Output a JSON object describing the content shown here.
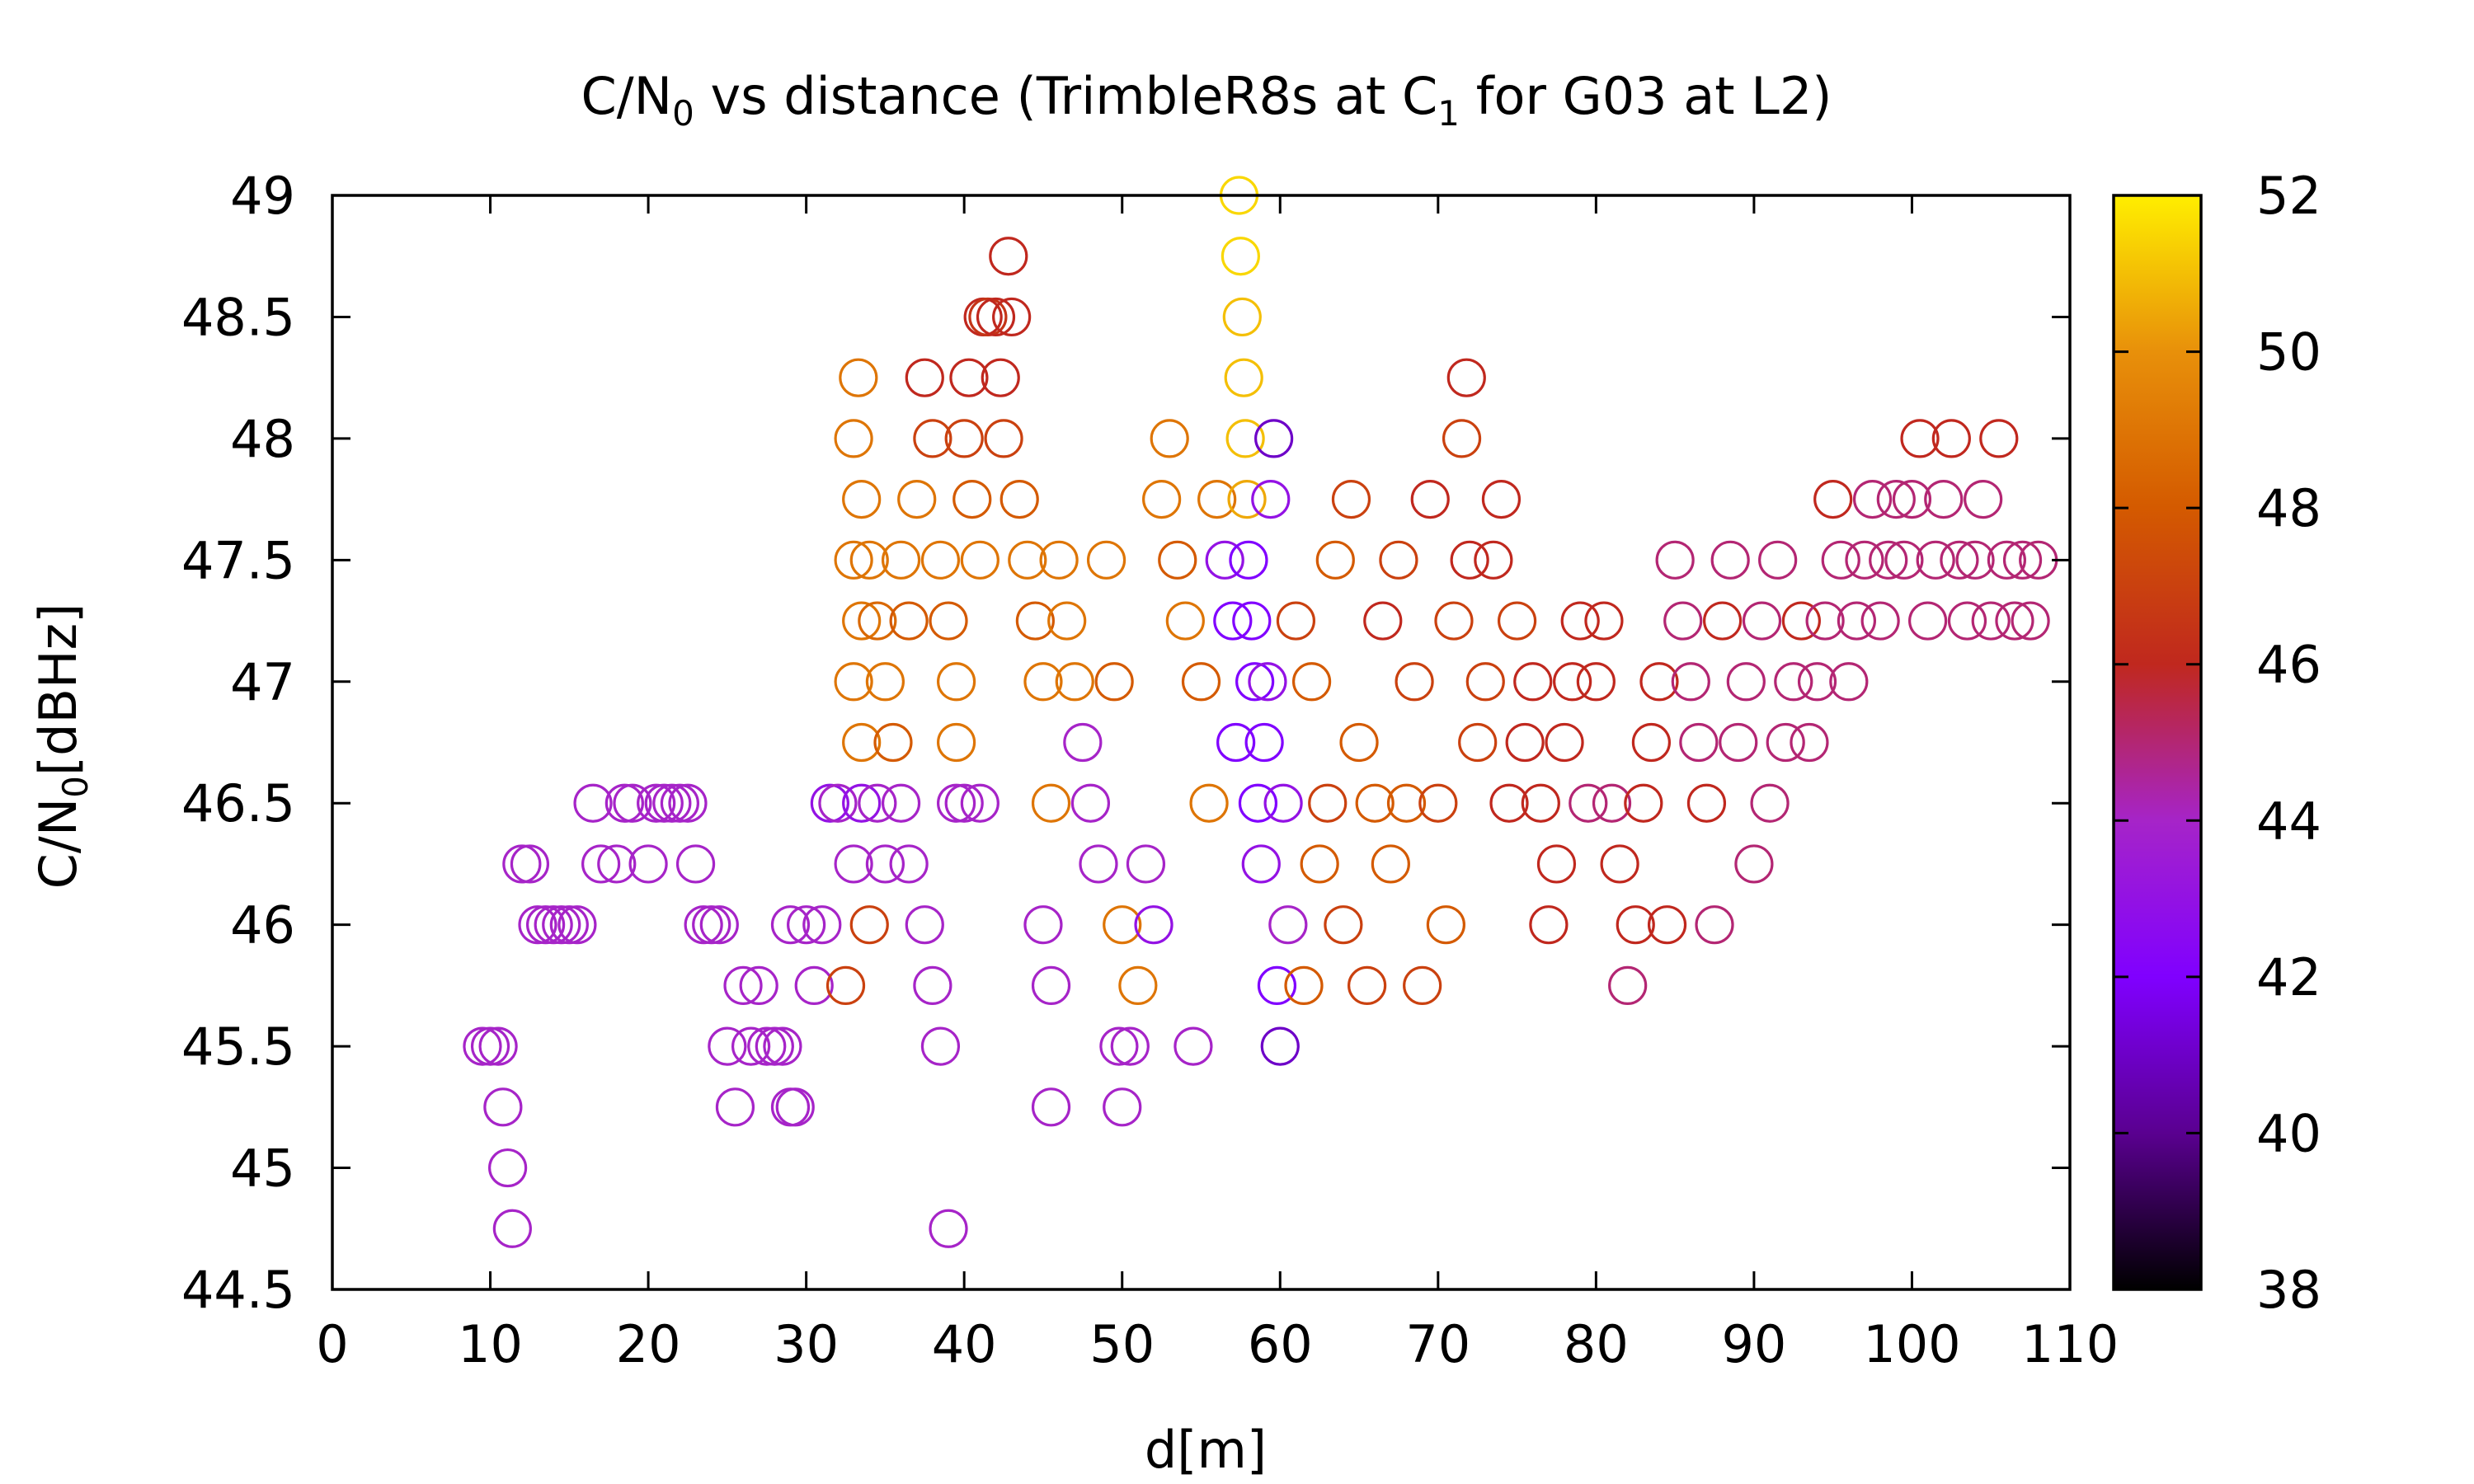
{
  "chart_data": {
    "type": "scatter",
    "title": {
      "prefix": "C/N",
      "sub1": "0",
      "middle": " vs distance (TrimbleR8s at C",
      "sub2": "1",
      "suffix": " for G03 at L2)"
    },
    "xlabel": "d[m]",
    "ylabel": {
      "prefix": "C/N",
      "sub": "0",
      "suffix": "[dBHz]"
    },
    "xlim": [
      0,
      110
    ],
    "ylim": [
      44.5,
      49
    ],
    "xticks": [
      "0",
      "10",
      "20",
      "30",
      "40",
      "50",
      "60",
      "70",
      "80",
      "90",
      "100",
      "110"
    ],
    "yticks": [
      "44.5",
      "45",
      "45.5",
      "46",
      "46.5",
      "47",
      "47.5",
      "48",
      "48.5",
      "49"
    ],
    "colorbar": {
      "range": [
        38,
        52
      ],
      "ticks": [
        "38",
        "40",
        "42",
        "44",
        "46",
        "48",
        "50",
        "52"
      ],
      "palette": [
        "#000000",
        "#5a0090",
        "#8000ff",
        "#a624c8",
        "#c0281e",
        "#d45a00",
        "#e8900a",
        "#ffee00"
      ]
    },
    "marker": "open-circle",
    "grid": false,
    "points": [
      [
        9.5,
        45.5,
        44
      ],
      [
        10.0,
        45.5,
        44
      ],
      [
        10.5,
        45.5,
        44
      ],
      [
        10.8,
        45.25,
        44
      ],
      [
        11.1,
        45.0,
        44
      ],
      [
        11.4,
        44.75,
        44
      ],
      [
        12.0,
        46.25,
        44
      ],
      [
        12.5,
        46.25,
        44
      ],
      [
        13.0,
        46.0,
        44
      ],
      [
        13.5,
        46.0,
        44
      ],
      [
        14.0,
        46.0,
        44
      ],
      [
        14.5,
        46.0,
        44
      ],
      [
        15.0,
        46.0,
        44
      ],
      [
        15.5,
        46.0,
        44
      ],
      [
        16.5,
        46.5,
        44
      ],
      [
        17.0,
        46.25,
        44
      ],
      [
        18.0,
        46.25,
        44
      ],
      [
        18.5,
        46.5,
        44
      ],
      [
        19.0,
        46.5,
        44
      ],
      [
        20.0,
        46.25,
        44
      ],
      [
        20.5,
        46.5,
        44
      ],
      [
        21.0,
        46.5,
        44
      ],
      [
        21.5,
        46.5,
        44
      ],
      [
        22.0,
        46.5,
        44
      ],
      [
        22.5,
        46.5,
        44
      ],
      [
        23.0,
        46.25,
        44
      ],
      [
        23.5,
        46.0,
        44
      ],
      [
        24.0,
        46.0,
        44
      ],
      [
        24.5,
        46.0,
        44
      ],
      [
        25.0,
        45.5,
        44
      ],
      [
        25.5,
        45.25,
        44
      ],
      [
        26.0,
        45.75,
        44
      ],
      [
        26.5,
        45.5,
        44
      ],
      [
        27.0,
        45.75,
        44
      ],
      [
        27.5,
        45.5,
        44
      ],
      [
        28.0,
        45.5,
        44
      ],
      [
        28.5,
        45.5,
        44
      ],
      [
        29.0,
        45.25,
        44
      ],
      [
        29.3,
        45.25,
        44
      ],
      [
        29.0,
        46.0,
        44
      ],
      [
        30.0,
        46.0,
        44
      ],
      [
        30.5,
        45.75,
        44
      ],
      [
        31.0,
        46.0,
        44
      ],
      [
        31.5,
        46.5,
        43
      ],
      [
        32.0,
        46.5,
        44
      ],
      [
        32.5,
        45.75,
        47
      ],
      [
        33.0,
        46.25,
        44
      ],
      [
        33.5,
        46.5,
        43
      ],
      [
        34.0,
        46.0,
        47
      ],
      [
        34.5,
        46.5,
        44
      ],
      [
        35.0,
        46.25,
        44
      ],
      [
        36.0,
        46.5,
        44
      ],
      [
        36.5,
        46.25,
        44
      ],
      [
        37.5,
        46.0,
        44
      ],
      [
        38.0,
        45.75,
        44
      ],
      [
        38.5,
        45.5,
        44
      ],
      [
        39.0,
        44.75,
        44
      ],
      [
        39.5,
        46.5,
        44
      ],
      [
        40.0,
        46.5,
        44
      ],
      [
        41.0,
        46.5,
        44
      ],
      [
        33.0,
        48.0,
        49
      ],
      [
        33.3,
        48.25,
        49
      ],
      [
        33.5,
        47.75,
        49
      ],
      [
        33.0,
        47.5,
        49
      ],
      [
        33.5,
        47.25,
        49
      ],
      [
        33.0,
        47.0,
        49
      ],
      [
        33.5,
        46.75,
        49
      ],
      [
        34.0,
        47.5,
        49
      ],
      [
        34.5,
        47.25,
        48.5
      ],
      [
        35.0,
        47.0,
        49
      ],
      [
        35.5,
        46.75,
        48
      ],
      [
        36.0,
        47.5,
        49
      ],
      [
        36.5,
        47.25,
        48
      ],
      [
        37.0,
        47.75,
        49
      ],
      [
        37.5,
        48.25,
        46
      ],
      [
        38.0,
        48.0,
        47
      ],
      [
        38.5,
        47.5,
        49
      ],
      [
        39.0,
        47.25,
        48
      ],
      [
        39.5,
        47.0,
        49
      ],
      [
        39.5,
        46.75,
        49
      ],
      [
        40.0,
        48.0,
        47
      ],
      [
        40.3,
        48.25,
        46
      ],
      [
        40.5,
        47.75,
        48
      ],
      [
        41.0,
        47.5,
        49
      ],
      [
        41.2,
        48.5,
        46
      ],
      [
        41.5,
        48.5,
        46.5
      ],
      [
        42.0,
        48.5,
        46
      ],
      [
        42.3,
        48.25,
        46
      ],
      [
        42.8,
        48.75,
        46
      ],
      [
        43.0,
        48.5,
        46
      ],
      [
        42.5,
        48.0,
        47
      ],
      [
        43.5,
        47.75,
        48
      ],
      [
        44.0,
        47.5,
        49
      ],
      [
        44.5,
        47.25,
        48
      ],
      [
        45.0,
        47.0,
        49
      ],
      [
        45.5,
        46.5,
        49
      ],
      [
        45.0,
        46.0,
        44
      ],
      [
        45.5,
        45.75,
        44
      ],
      [
        45.5,
        45.25,
        44
      ],
      [
        46.0,
        47.5,
        49
      ],
      [
        46.5,
        47.25,
        49
      ],
      [
        47.0,
        47.0,
        49
      ],
      [
        47.5,
        46.75,
        44
      ],
      [
        48.0,
        46.5,
        44
      ],
      [
        48.5,
        46.25,
        44
      ],
      [
        49.0,
        47.5,
        49
      ],
      [
        49.5,
        47.0,
        48
      ],
      [
        50.0,
        46.0,
        49
      ],
      [
        50.0,
        45.25,
        44
      ],
      [
        49.8,
        45.5,
        44
      ],
      [
        50.5,
        45.5,
        44
      ],
      [
        51.0,
        45.75,
        49
      ],
      [
        51.5,
        46.25,
        44
      ],
      [
        52.0,
        46.0,
        43
      ],
      [
        52.5,
        47.75,
        49
      ],
      [
        53.0,
        48.0,
        49
      ],
      [
        53.5,
        47.5,
        48
      ],
      [
        54.0,
        47.25,
        49
      ],
      [
        54.5,
        45.5,
        44
      ],
      [
        55.0,
        47.0,
        48
      ],
      [
        55.5,
        46.5,
        49
      ],
      [
        56.0,
        47.75,
        49
      ],
      [
        56.5,
        47.5,
        43
      ],
      [
        57.0,
        47.25,
        42
      ],
      [
        57.2,
        46.75,
        42
      ],
      [
        57.4,
        49.0,
        51.5
      ],
      [
        57.5,
        48.75,
        51.5
      ],
      [
        57.6,
        48.5,
        51
      ],
      [
        57.7,
        48.25,
        51
      ],
      [
        57.8,
        48.0,
        51
      ],
      [
        57.9,
        47.75,
        50.5
      ],
      [
        58.0,
        47.5,
        42
      ],
      [
        58.2,
        47.25,
        42
      ],
      [
        58.4,
        47.0,
        42
      ],
      [
        58.6,
        46.5,
        42
      ],
      [
        58.8,
        46.25,
        43
      ],
      [
        59.0,
        46.75,
        42
      ],
      [
        59.2,
        47.0,
        43
      ],
      [
        59.4,
        47.75,
        43
      ],
      [
        59.6,
        48.0,
        41
      ],
      [
        59.8,
        45.75,
        42
      ],
      [
        60.0,
        45.5,
        41
      ],
      [
        60.2,
        46.5,
        43
      ],
      [
        60.5,
        46.0,
        44
      ],
      [
        61.0,
        47.25,
        47
      ],
      [
        61.5,
        45.75,
        48
      ],
      [
        62.0,
        47.0,
        48
      ],
      [
        62.5,
        46.25,
        48
      ],
      [
        63.0,
        46.5,
        47
      ],
      [
        63.5,
        47.5,
        48
      ],
      [
        64.0,
        46.0,
        47
      ],
      [
        64.5,
        47.75,
        47
      ],
      [
        65.0,
        46.75,
        48
      ],
      [
        65.5,
        45.75,
        47
      ],
      [
        66.0,
        46.5,
        48
      ],
      [
        66.5,
        47.25,
        46
      ],
      [
        67.0,
        46.25,
        48
      ],
      [
        67.5,
        47.5,
        47
      ],
      [
        68.0,
        46.5,
        48
      ],
      [
        68.5,
        47.0,
        47
      ],
      [
        69.0,
        45.75,
        47
      ],
      [
        69.5,
        47.75,
        46
      ],
      [
        70.0,
        46.5,
        47
      ],
      [
        70.5,
        46.0,
        48
      ],
      [
        71.0,
        47.25,
        47
      ],
      [
        71.5,
        48.0,
        47
      ],
      [
        71.8,
        48.25,
        46
      ],
      [
        72.0,
        47.5,
        46
      ],
      [
        72.5,
        46.75,
        47
      ],
      [
        73.0,
        47.0,
        47
      ],
      [
        73.5,
        47.5,
        46
      ],
      [
        74.0,
        47.75,
        46
      ],
      [
        74.5,
        46.5,
        46
      ],
      [
        75.0,
        47.25,
        47
      ],
      [
        75.5,
        46.75,
        46
      ],
      [
        76.0,
        47.0,
        46
      ],
      [
        76.5,
        46.5,
        46
      ],
      [
        77.0,
        46.0,
        46
      ],
      [
        77.5,
        46.25,
        46
      ],
      [
        78.0,
        46.75,
        46
      ],
      [
        78.5,
        47.0,
        46
      ],
      [
        79.0,
        47.25,
        46
      ],
      [
        79.5,
        46.5,
        45
      ],
      [
        80.0,
        47.0,
        46
      ],
      [
        80.5,
        47.25,
        46
      ],
      [
        81.0,
        46.5,
        45
      ],
      [
        81.5,
        46.25,
        46
      ],
      [
        82.0,
        45.75,
        45
      ],
      [
        82.5,
        46.0,
        46
      ],
      [
        83.0,
        46.5,
        46
      ],
      [
        83.5,
        46.75,
        46
      ],
      [
        84.0,
        47.0,
        46
      ],
      [
        84.5,
        46.0,
        46
      ],
      [
        85.0,
        47.5,
        45
      ],
      [
        85.5,
        47.25,
        45
      ],
      [
        86.0,
        47.0,
        45
      ],
      [
        86.5,
        46.75,
        45
      ],
      [
        87.0,
        46.5,
        46
      ],
      [
        87.5,
        46.0,
        45
      ],
      [
        88.0,
        47.25,
        46
      ],
      [
        88.5,
        47.5,
        45
      ],
      [
        89.0,
        46.75,
        45
      ],
      [
        89.5,
        47.0,
        45
      ],
      [
        90.0,
        46.25,
        45
      ],
      [
        90.5,
        47.25,
        45
      ],
      [
        91.0,
        46.5,
        45
      ],
      [
        91.5,
        47.5,
        45
      ],
      [
        92.0,
        46.75,
        45
      ],
      [
        92.5,
        47.0,
        45
      ],
      [
        93.0,
        47.25,
        46
      ],
      [
        93.5,
        46.75,
        45
      ],
      [
        94.0,
        47.0,
        45
      ],
      [
        94.5,
        47.25,
        45
      ],
      [
        95.0,
        47.75,
        46
      ],
      [
        95.5,
        47.5,
        45
      ],
      [
        96.0,
        47.0,
        45
      ],
      [
        96.5,
        47.25,
        45
      ],
      [
        97.0,
        47.5,
        45
      ],
      [
        97.5,
        47.75,
        45
      ],
      [
        98.0,
        47.25,
        45
      ],
      [
        98.5,
        47.5,
        45
      ],
      [
        99.0,
        47.75,
        45
      ],
      [
        99.5,
        47.5,
        45
      ],
      [
        100.0,
        47.75,
        45
      ],
      [
        100.5,
        48.0,
        46
      ],
      [
        101.0,
        47.25,
        45
      ],
      [
        101.5,
        47.5,
        45
      ],
      [
        102.0,
        47.75,
        45
      ],
      [
        102.5,
        48.0,
        46
      ],
      [
        103.0,
        47.5,
        45
      ],
      [
        103.5,
        47.25,
        45
      ],
      [
        104.0,
        47.5,
        45
      ],
      [
        104.5,
        47.75,
        45
      ],
      [
        105.0,
        47.25,
        45
      ],
      [
        105.5,
        48.0,
        46
      ],
      [
        106.0,
        47.5,
        45
      ],
      [
        106.5,
        47.25,
        45
      ],
      [
        107.0,
        47.5,
        45
      ],
      [
        107.5,
        47.25,
        45
      ],
      [
        108.0,
        47.5,
        45
      ]
    ]
  }
}
